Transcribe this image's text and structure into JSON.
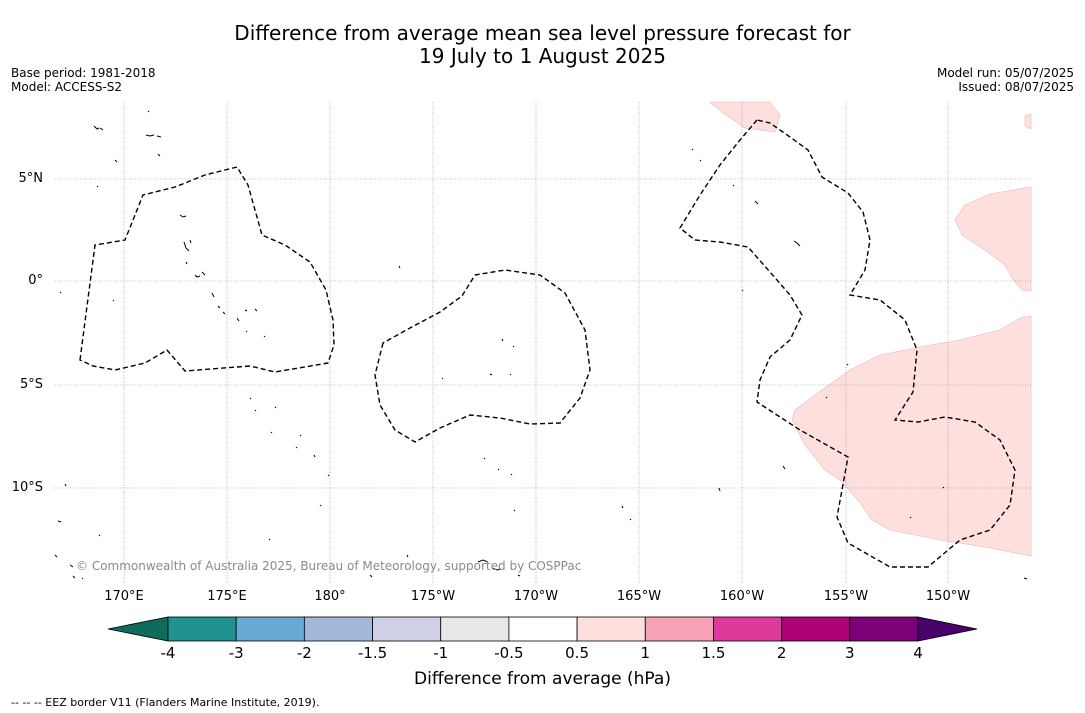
{
  "title_line1": "Difference from average mean sea level pressure forecast for",
  "title_line2": "19 July to 1 August 2025",
  "base_period": "Base period: 1981-2018",
  "model": "Model: ACCESS-S2",
  "model_run": "Model run: 05/07/2025",
  "issued": "Issued: 08/07/2025",
  "lat_labels": [
    "5°N",
    "0°",
    "5°S",
    "10°S"
  ],
  "lon_labels": [
    "170°E",
    "175°E",
    "180°",
    "175°W",
    "170°W",
    "165°W",
    "160°W",
    "155°W",
    "150°W"
  ],
  "copyright": "© Commonwealth of Australia 2025, Bureau of Meteorology, supported by COSPPac",
  "colorbar": {
    "title": "Difference from average (hPa)",
    "ticks": [
      "-4",
      "-3",
      "-2",
      "-1.5",
      "-1",
      "-0.5",
      "0.5",
      "1",
      "1.5",
      "2",
      "3",
      "4"
    ],
    "under_color": "#0f6b5b",
    "colors": [
      "#21938f",
      "#66a9d2",
      "#a4b9da",
      "#cfd0e7",
      "#e8e8e8",
      "#ffffff",
      "#fde0dd",
      "#f7a1b6",
      "#dd3a9c",
      "#ad0177",
      "#7a0177"
    ],
    "over_color": "#49006a"
  },
  "footnote": "--  --  -- EEZ border V11 (Flanders Marine Institute, 2019).",
  "anomaly_fill_color": "#fde0dd"
}
